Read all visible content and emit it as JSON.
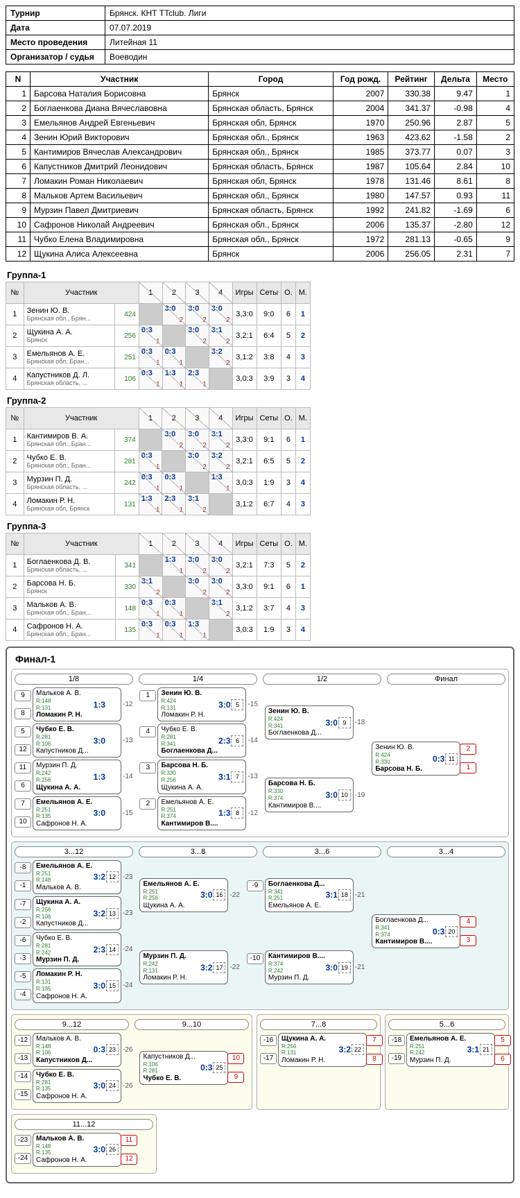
{
  "info": {
    "tournament_label": "Турнир",
    "tournament": "Брянск. КНТ TTclub. Лиги",
    "date_label": "Дата",
    "date": "07.07.2019",
    "venue_label": "Место проведения",
    "venue": "Литейная 11",
    "organizer_label": "Организатор / судья",
    "organizer": "Воеводин"
  },
  "cols": {
    "n": "N",
    "name": "Участник",
    "city": "Город",
    "year": "Год рожд.",
    "rating": "Рейтинг",
    "delta": "Дельта",
    "place": "Место"
  },
  "participants": [
    {
      "n": 1,
      "name": "Барсова Наталия Борисовна",
      "city": "Брянск",
      "year": 2007,
      "rating": "330.38",
      "delta": "9.47",
      "place": 1
    },
    {
      "n": 2,
      "name": "Боглаенкова Диана Вячеславовна",
      "city": "Брянская область, Брянск",
      "year": 2004,
      "rating": "341.37",
      "delta": "-0.98",
      "place": 4
    },
    {
      "n": 3,
      "name": "Емельянов Андрей Евгеньевич",
      "city": "Брянская обл, Брянск",
      "year": 1970,
      "rating": "250.96",
      "delta": "2.87",
      "place": 5
    },
    {
      "n": 4,
      "name": "Зенин Юрий Викторович",
      "city": "Брянская обл., Брянск",
      "year": 1963,
      "rating": "423.62",
      "delta": "-1.58",
      "place": 2
    },
    {
      "n": 5,
      "name": "Кантимиров Вячеслав Александрович",
      "city": "Брянская обл., Брянск",
      "year": 1985,
      "rating": "373.77",
      "delta": "0.07",
      "place": 3
    },
    {
      "n": 6,
      "name": "Капустников Дмитрий Леонидович",
      "city": "Брянская область, Брянск",
      "year": 1987,
      "rating": "105.64",
      "delta": "2.84",
      "place": 10
    },
    {
      "n": 7,
      "name": "Ломакин Роман Николаевич",
      "city": "Брянская обл, Брянск",
      "year": 1978,
      "rating": "131.46",
      "delta": "8.61",
      "place": 8
    },
    {
      "n": 8,
      "name": "Мальков Артем Васильевич",
      "city": "Брянская обл., Брянск",
      "year": 1980,
      "rating": "147.57",
      "delta": "0.93",
      "place": 11
    },
    {
      "n": 9,
      "name": "Мурзин Павел Дмитриевич",
      "city": "Брянская область, Брянск",
      "year": 1992,
      "rating": "241.82",
      "delta": "-1.69",
      "place": 6
    },
    {
      "n": 10,
      "name": "Сафронов Николай Андреевич",
      "city": "Брянская обл., Брянск",
      "year": 2006,
      "rating": "135.37",
      "delta": "-2.80",
      "place": 12
    },
    {
      "n": 11,
      "name": "Чубко Елена Владимировна",
      "city": "Брянская обл., Брянск",
      "year": 1972,
      "rating": "281.13",
      "delta": "-0.65",
      "place": 9
    },
    {
      "n": 12,
      "name": "Щукина Алиса Алексеевна",
      "city": "Брянск",
      "year": 2006,
      "rating": "256.05",
      "delta": "2.31",
      "place": 7
    }
  ],
  "gcols": {
    "n": "№",
    "name": "Участник",
    "games": "Игры",
    "sets": "Сеты",
    "pts": "О.",
    "pl": "М."
  },
  "groups": [
    {
      "title": "Группа-1",
      "rows": [
        {
          "n": 1,
          "name": "Зенин Ю. В.",
          "city": "Брянская обл., Брян...",
          "r": 424,
          "cells": [
            null,
            [
              "3:0",
              "2"
            ],
            [
              "3:0",
              "2"
            ],
            [
              "3:0",
              "2"
            ]
          ],
          "games": "3,3:0",
          "sets": "9:0",
          "pts": 6,
          "pl": 1
        },
        {
          "n": 2,
          "name": "Щукина А. А.",
          "city": "Брянск",
          "r": 256,
          "cells": [
            [
              "0:3",
              "1"
            ],
            null,
            [
              "3:0",
              "2"
            ],
            [
              "3:1",
              "2"
            ]
          ],
          "games": "3,2:1",
          "sets": "6:4",
          "pts": 5,
          "pl": 2
        },
        {
          "n": 3,
          "name": "Емельянов А. Е.",
          "city": "Брянская обл, Бран...",
          "r": 251,
          "cells": [
            [
              "0:3",
              "1"
            ],
            [
              "0:3",
              "1"
            ],
            null,
            [
              "3:2",
              "2"
            ]
          ],
          "games": "3,1:2",
          "sets": "3:8",
          "pts": 4,
          "pl": 3
        },
        {
          "n": 4,
          "name": "Капустников Д. Л.",
          "city": "Брянская область, ...",
          "r": 106,
          "cells": [
            [
              "0:3",
              "1"
            ],
            [
              "1:3",
              "1"
            ],
            [
              "2:3",
              "1"
            ],
            null
          ],
          "games": "3,0:3",
          "sets": "3:9",
          "pts": 3,
          "pl": 4
        }
      ]
    },
    {
      "title": "Группа-2",
      "rows": [
        {
          "n": 1,
          "name": "Кантимиров В. А.",
          "city": "Брянская обл., Бран...",
          "r": 374,
          "cells": [
            null,
            [
              "3:0",
              "2"
            ],
            [
              "3:0",
              "2"
            ],
            [
              "3:1",
              "2"
            ]
          ],
          "games": "3,3:0",
          "sets": "9:1",
          "pts": 6,
          "pl": 1
        },
        {
          "n": 2,
          "name": "Чубко Е. В.",
          "city": "Брянская обл., Бран...",
          "r": 281,
          "cells": [
            [
              "0:3",
              "1"
            ],
            null,
            [
              "3:0",
              "2"
            ],
            [
              "3:2",
              "2"
            ]
          ],
          "games": "3,2:1",
          "sets": "6:5",
          "pts": 5,
          "pl": 2
        },
        {
          "n": 3,
          "name": "Мурзин П. Д.",
          "city": "Брянская область, ...",
          "r": 242,
          "cells": [
            [
              "0:3",
              "1"
            ],
            [
              "0:3",
              "1"
            ],
            null,
            [
              "1:3",
              "1"
            ]
          ],
          "games": "3,0:3",
          "sets": "1:9",
          "pts": 3,
          "pl": 4
        },
        {
          "n": 4,
          "name": "Ломакин Р. Н.",
          "city": "Брянская обл, Брянск",
          "r": 131,
          "cells": [
            [
              "1:3",
              "1"
            ],
            [
              "2:3",
              "1"
            ],
            [
              "3:1",
              "2"
            ],
            null
          ],
          "games": "3,1:2",
          "sets": "6:7",
          "pts": 4,
          "pl": 3
        }
      ]
    },
    {
      "title": "Группа-3",
      "rows": [
        {
          "n": 1,
          "name": "Боглаенкова Д. В.",
          "city": "Брянская область, ...",
          "r": 341,
          "cells": [
            null,
            [
              "1:3",
              "1"
            ],
            [
              "3:0",
              "2"
            ],
            [
              "3:0",
              "2"
            ]
          ],
          "games": "3,2:1",
          "sets": "7:3",
          "pts": 5,
          "pl": 2
        },
        {
          "n": 2,
          "name": "Барсова Н. Б.",
          "city": "Брянск",
          "r": 330,
          "cells": [
            [
              "3:1",
              "2"
            ],
            null,
            [
              "3:0",
              "2"
            ],
            [
              "3:0",
              "2"
            ]
          ],
          "games": "3,3:0",
          "sets": "9:1",
          "pts": 6,
          "pl": 1
        },
        {
          "n": 3,
          "name": "Мальков А. В.",
          "city": "Брянская обл., Бран...",
          "r": 148,
          "cells": [
            [
              "0:3",
              "1"
            ],
            [
              "0:3",
              "1"
            ],
            null,
            [
              "3:1",
              "2"
            ]
          ],
          "games": "3,1:2",
          "sets": "3:7",
          "pts": 4,
          "pl": 3
        },
        {
          "n": 4,
          "name": "Сафронов Н. А.",
          "city": "Брянская обл., Бран...",
          "r": 135,
          "cells": [
            [
              "0:3",
              "1"
            ],
            [
              "0:3",
              "1"
            ],
            [
              "1:3",
              "1"
            ],
            null
          ],
          "games": "3,0:3",
          "sets": "1:9",
          "pts": 3,
          "pl": 4
        }
      ]
    }
  ],
  "bracket": {
    "title": "Финал-1",
    "main": {
      "rounds": [
        "1/8",
        "1/4",
        "1/2",
        "Финал"
      ],
      "r8": [
        {
          "s1": 9,
          "p1": "Мальков А. В.",
          "r1": "R:148",
          "s2": 8,
          "p2": "Ломакин Р. Н.",
          "r2": "R:131",
          "score": "1:3",
          "win": 2,
          "link": "-12"
        },
        {
          "s1": 5,
          "p1": "Чубко Е. В.",
          "r1": "R:281",
          "s2": 12,
          "p2": "Капустников Д...",
          "r2": "R:106",
          "score": "3:0",
          "win": 1,
          "link": "-13"
        },
        {
          "s1": 11,
          "p1": "Мурзин П. Д.",
          "r1": "R:242",
          "s2": 6,
          "p2": "Щукина А. А.",
          "r2": "R:256",
          "score": "1:3",
          "win": 2,
          "link": "-14"
        },
        {
          "s1": 7,
          "p1": "Емельянов А. Е.",
          "r1": "R:251",
          "s2": 10,
          "p2": "Сафронов Н. А.",
          "r2": "R:135",
          "score": "3:0",
          "win": 1,
          "link": "-15"
        }
      ],
      "r4": [
        {
          "s": 1,
          "p1": "Зенин Ю. В.",
          "r1": "R:424",
          "p2": "Ломакин Р. Н.",
          "r2": "R:131",
          "score": "3:0",
          "m": 5,
          "win": 1,
          "link": "-15"
        },
        {
          "s": 4,
          "p1": "Чубко Е. В.",
          "r1": "R:281",
          "p2": "Боглаенкова Д...",
          "r2": "R:341",
          "score": "2:3",
          "m": 6,
          "win": 2,
          "link": "-14"
        },
        {
          "s": 3,
          "p1": "Барсова Н. Б.",
          "r1": "R:330",
          "p2": "Щукина А. А.",
          "r2": "R:256",
          "score": "3:1",
          "m": 7,
          "win": 1,
          "link": "-13"
        },
        {
          "s": 2,
          "p1": "Емельянов А. Е.",
          "r1": "R:251",
          "p2": "Кантимиров В....",
          "r2": "R:374",
          "score": "1:3",
          "m": 8,
          "win": 2,
          "link": "-12"
        }
      ],
      "r2": [
        {
          "p1": "Зенин Ю. В.",
          "r1": "R:424",
          "p2": "Боглаенкова Д...",
          "r2": "R:341",
          "score": "3:0",
          "m": 9,
          "win": 1,
          "link": "-18"
        },
        {
          "p1": "Барсова Н. Б.",
          "r1": "R:330",
          "p2": "Кантимиров В....",
          "r2": "R:374",
          "score": "3:0",
          "m": 10,
          "win": 1,
          "link": "-19"
        }
      ],
      "final": {
        "p1": "Зенин Ю. В.",
        "r1": "R:424",
        "p2": "Барсова Н. Б.",
        "r2": "R:330",
        "score": "0:3",
        "m": 11,
        "win": 2,
        "pl1": 2,
        "pl2": 1
      }
    },
    "cons312": {
      "rounds": [
        "3...12",
        "3...8",
        "3...6",
        "3...4"
      ],
      "r1": [
        {
          "s1": -8,
          "p1": "Емельянов А. Е.",
          "r1": "R:251",
          "s2": -1,
          "p2": "Мальков А. В.",
          "r2": "R:148",
          "score": "3:2",
          "m": 12,
          "win": 1,
          "link": "-23"
        },
        {
          "s1": -7,
          "p1": "Щукина А. А.",
          "r1": "R:256",
          "s2": -2,
          "p2": "Капустников Д...",
          "r2": "R:106",
          "score": "3:2",
          "m": 13,
          "win": 1,
          "link": "-23"
        },
        {
          "s1": -6,
          "p1": "Чубко Е. В.",
          "r1": "R:281",
          "s2": -3,
          "p2": "Мурзин П. Д.",
          "r2": "R:242",
          "score": "2:3",
          "m": 14,
          "win": 2,
          "link": "-24"
        },
        {
          "s1": -5,
          "p1": "Ломакин Р. Н.",
          "r1": "R:131",
          "s2": -4,
          "p2": "Сафронов Н. А.",
          "r2": "R:135",
          "score": "3:0",
          "m": 15,
          "win": 1,
          "link": "-24"
        }
      ],
      "r2": [
        {
          "p1": "Емельянов А. Е.",
          "r1": "R:251",
          "p2": "Щукина А. А.",
          "r2": "R:256",
          "score": "3:0",
          "m": 16,
          "win": 1,
          "link": "-22"
        },
        {
          "p1": "Мурзин П. Д.",
          "r1": "R:242",
          "p2": "Ломакин Р. Н.",
          "r2": "R:131",
          "score": "3:2",
          "m": 17,
          "win": 1,
          "link": "-22"
        }
      ],
      "r3": [
        {
          "s": -9,
          "p1": "Боглаенкова Д...",
          "r1": "R:341",
          "p2": "Емельянов А. Е.",
          "r2": "R:251",
          "score": "3:1",
          "m": 18,
          "win": 1,
          "link": "-21"
        },
        {
          "s": -10,
          "p1": "Кантимиров В....",
          "r1": "R:374",
          "p2": "Мурзин П. Д.",
          "r2": "R:242",
          "score": "3:0",
          "m": 19,
          "win": 1,
          "link": "-21"
        }
      ],
      "final": {
        "p1": "Боглаенкова Д...",
        "r1": "R:341",
        "p2": "Кантимиров В....",
        "r2": "R:374",
        "score": "0:3",
        "m": 20,
        "win": 2,
        "pl1": 4,
        "pl2": 3
      }
    },
    "cons912": {
      "rounds": [
        "9...12",
        "9...10"
      ],
      "r1": [
        {
          "s1": -12,
          "p1": "Мальков А. В.",
          "r1": "R:148",
          "s2": -13,
          "p2": "Капустников Д...",
          "r2": "R:106",
          "score": "0:3",
          "m": 23,
          "win": 2,
          "link": "-26"
        },
        {
          "s1": -14,
          "p1": "Чубко Е. В.",
          "r1": "R:281",
          "s2": -15,
          "p2": "Сафронов Н. А.",
          "r2": "R:135",
          "score": "3:0",
          "m": 24,
          "win": 1,
          "link": "-26"
        }
      ],
      "final": {
        "p1": "Капустников Д...",
        "r1": "R:106",
        "p2": "Чубко Е. В.",
        "r2": "R:281",
        "score": "0:3",
        "m": 25,
        "win": 2,
        "pl1": 10,
        "pl2": 9
      }
    },
    "cons78": {
      "title": "7...8",
      "s1": -16,
      "p1": "Щукина А. А.",
      "r1": "R:256",
      "s2": -17,
      "p2": "Ломакин Р. Н.",
      "r2": "R:131",
      "score": "3:2",
      "m": 22,
      "win": 1,
      "pl1": 7,
      "pl2": 8
    },
    "cons56": {
      "title": "5...6",
      "s1": -18,
      "p1": "Емельянов А. Е.",
      "r1": "R:251",
      "s2": -19,
      "p2": "Мурзин П. Д.",
      "r2": "R:242",
      "score": "3:1",
      "m": 21,
      "win": 1,
      "pl1": 5,
      "pl2": 6
    },
    "cons1112": {
      "title": "11...12",
      "s1": -23,
      "p1": "Мальков А. В.",
      "r1": "R:148",
      "s2": -24,
      "p2": "Сафронов Н. А.",
      "r2": "R:135",
      "score": "3:0",
      "m": 26,
      "win": 1,
      "pl1": 11,
      "pl2": 12
    }
  }
}
